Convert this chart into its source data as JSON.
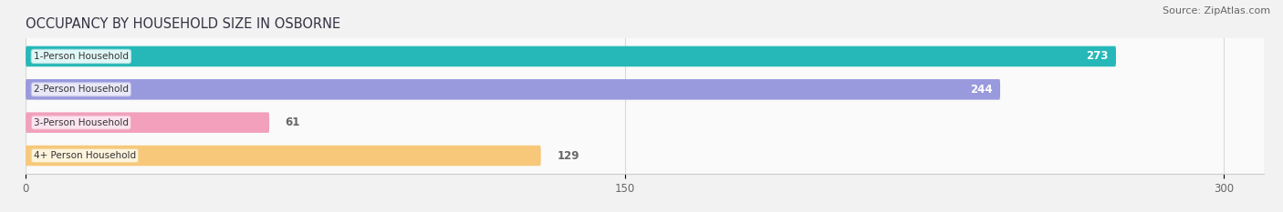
{
  "title": "OCCUPANCY BY HOUSEHOLD SIZE IN OSBORNE",
  "source": "Source: ZipAtlas.com",
  "categories": [
    "1-Person Household",
    "2-Person Household",
    "3-Person Household",
    "4+ Person Household"
  ],
  "values": [
    273,
    244,
    61,
    129
  ],
  "bar_colors": [
    "#26b8b8",
    "#9999dd",
    "#f2a0bc",
    "#f7c87a"
  ],
  "bar_label_colors": [
    "white",
    "white",
    "#666666",
    "#666666"
  ],
  "label_bg_colors": [
    "#e0f7f7",
    "#e8e8f8",
    "#fce4ef",
    "#fef3dc"
  ],
  "label_edge_colors": [
    "#b0e0e0",
    "#c0c0e8",
    "#f0b0c8",
    "#f0d898"
  ],
  "xlim": [
    0,
    310
  ],
  "xticks": [
    0,
    150,
    300
  ],
  "background_color": "#f2f2f2",
  "plot_bg_color": "#fafafa",
  "title_fontsize": 10.5,
  "source_fontsize": 8,
  "bar_height": 0.62,
  "figsize": [
    14.06,
    2.33
  ],
  "dpi": 100
}
